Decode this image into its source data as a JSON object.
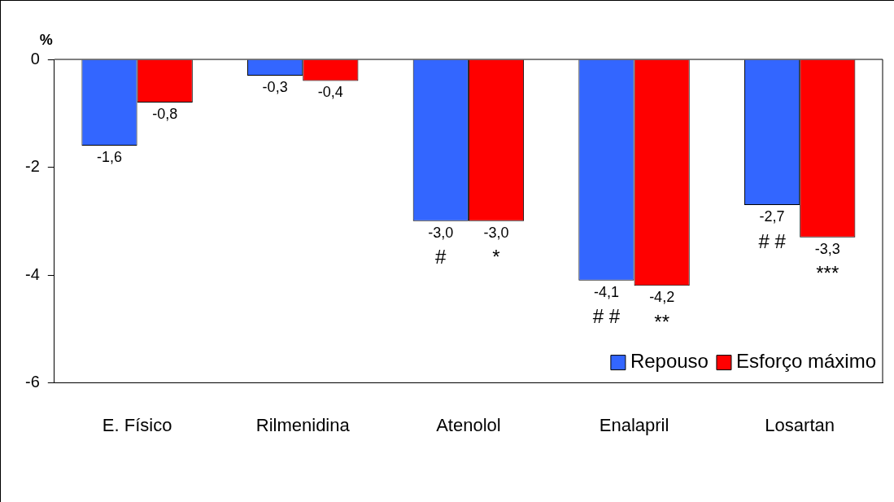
{
  "chart_data": {
    "type": "bar",
    "ylabel": "%",
    "categories": [
      "E. Físico",
      "Rilmenidina",
      "Atenolol",
      "Enalapril",
      "Losartan"
    ],
    "series": [
      {
        "name": "Repouso",
        "color": "#3366ff",
        "values": [
          -1.6,
          -0.3,
          -3.0,
          -4.1,
          -2.7
        ],
        "value_labels": [
          "-1,6",
          "-0,3",
          "-3,0",
          "-4,1",
          "-2,7"
        ]
      },
      {
        "name": "Esforço máximo",
        "color": "#ff0000",
        "values": [
          -0.8,
          -0.4,
          -3.0,
          -4.2,
          -3.3
        ],
        "value_labels": [
          "-0,8",
          "-0,4",
          "-3,0",
          "-4,2",
          "-3,3"
        ]
      }
    ],
    "ylim": [
      -6,
      0
    ],
    "yticks": [
      -6,
      -4,
      -2,
      0
    ],
    "grid": false,
    "legend": "bottom right",
    "annotations": [
      "#",
      "*",
      "# #",
      "**",
      "# #",
      "***"
    ]
  }
}
